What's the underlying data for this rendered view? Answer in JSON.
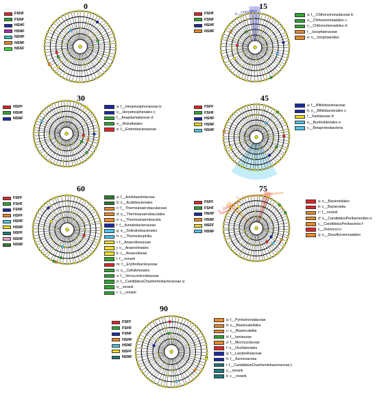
{
  "panels": [
    {
      "title": "0",
      "legend": [
        {
          "label": "FSHF",
          "color": "#e8242a"
        },
        {
          "label": "FSNF",
          "color": "#2fa832"
        },
        {
          "label": "HSHF",
          "color": "#1a2aa8"
        },
        {
          "label": "HSNF",
          "color": "#b22bb5"
        },
        {
          "label": "NSHF",
          "color": "#34c7c3"
        },
        {
          "label": "NSNF",
          "color": "#f08a24"
        },
        {
          "label": "NSSF",
          "color": "#39e33a"
        }
      ],
      "clades": []
    },
    {
      "title": "15",
      "legend": [
        {
          "label": "FSHF",
          "color": "#e8242a"
        },
        {
          "label": "FSNF",
          "color": "#2fa832"
        },
        {
          "label": "HSHF",
          "color": "#1a2aa8"
        },
        {
          "label": "NSNF",
          "color": "#f08a24"
        }
      ],
      "highlight": "p__Chloroflexi",
      "clades": [
        {
          "label": "a: f__Chthonomonadaceae b:",
          "color": "#2fa832"
        },
        {
          "label": "o__Chthonomonadales c:",
          "color": "#2fa832"
        },
        {
          "label": "c__Chthonomonadetes d:",
          "color": "#2fa832"
        },
        {
          "label": "f__Isosphaeraceae",
          "color": "#f08a24"
        },
        {
          "label": "e: o__Isosphaerales",
          "color": "#f08a24"
        }
      ]
    },
    {
      "title": "30",
      "legend": [
        {
          "label": "HSFF",
          "color": "#e8242a"
        },
        {
          "label": "HSHF",
          "color": "#2fa832"
        },
        {
          "label": "NSNF",
          "color": "#1a2aa8"
        }
      ],
      "clades": [
        {
          "label": "a: f__Herpetosiphonaceae b:",
          "color": "#1a2aa8"
        },
        {
          "label": "o__Herpetosiphonales c:",
          "color": "#1a2aa8"
        },
        {
          "label": "f__Anaplasmataceae d:",
          "color": "#2fa832"
        },
        {
          "label": "o__Rickettsiales",
          "color": "#2fa832"
        },
        {
          "label": "e: f__Enterobacteriaceae",
          "color": "#e8242a"
        }
      ]
    },
    {
      "title": "45",
      "legend": [
        {
          "label": "FSFF",
          "color": "#e8242a"
        },
        {
          "label": "FSHF",
          "color": "#2fa832"
        },
        {
          "label": "HSHF",
          "color": "#1a2aa8"
        },
        {
          "label": "HSNF",
          "color": "#f5e21c"
        },
        {
          "label": "NSHF",
          "color": "#4cc7f0"
        }
      ],
      "clades": [
        {
          "label": "a: f__Bifidobacteriaceae",
          "color": "#1a2aa8"
        },
        {
          "label": "b: o__Bifidobacteriales c:",
          "color": "#1a2aa8"
        },
        {
          "label": "f__Kaistiaceae d:",
          "color": "#f5e21c"
        },
        {
          "label": "o__Burkholderiales e:",
          "color": "#4cc7f0"
        },
        {
          "label": "c__Betaproteobacteria",
          "color": "#4cc7f0"
        }
      ]
    },
    {
      "title": "60",
      "legend": [
        {
          "label": "FSFF",
          "color": "#e8242a"
        },
        {
          "label": "FSHF",
          "color": "#2fa832"
        },
        {
          "label": "FSNF",
          "color": "#1a2aa8"
        },
        {
          "label": "HSFF",
          "color": "#f08a24"
        },
        {
          "label": "HSHF",
          "color": "#4cc7f0"
        },
        {
          "label": "HSNF",
          "color": "#f5e21c"
        },
        {
          "label": "NSFF",
          "color": "#1d7a7a"
        },
        {
          "label": "NSHF",
          "color": "#f2a5c7"
        },
        {
          "label": "NSNF",
          "color": "#2e7d32"
        }
      ],
      "clades": [
        {
          "label": "a: f__Acidobacteriaceae",
          "color": "#2e7d32"
        },
        {
          "label": "b: o__Acidobacteriales",
          "color": "#2e7d32"
        },
        {
          "label": "c: f__Thermoanaerobaculaceae",
          "color": "#f08a24"
        },
        {
          "label": "d: o__Thermoanaerobaculales",
          "color": "#f08a24"
        },
        {
          "label": "e: c__Thermoanaerobaculia",
          "color": "#f08a24"
        },
        {
          "label": "f: f__Ilumatobacteraceae",
          "color": "#1a2aa8"
        },
        {
          "label": "g: o__Solirubrobacterales",
          "color": "#4cc7f0"
        },
        {
          "label": "h: c__Thermoleophilia",
          "color": "#4cc7f0"
        },
        {
          "label": "i: f__Anaerolineaceae",
          "color": "#f5e21c"
        },
        {
          "label": "j: o__Anaerolineales",
          "color": "#f5e21c"
        },
        {
          "label": "k: c__Anaerolineae",
          "color": "#f5e21c"
        },
        {
          "label": "l: f__norank",
          "color": "#2fa832"
        },
        {
          "label": "m: f__Erythrobacteraceae",
          "color": "#e8242a"
        },
        {
          "label": "n: o__Cellvibrionales",
          "color": "#2fa832"
        },
        {
          "label": "o: f__Verrucomicrobiaceae",
          "color": "#2fa832"
        },
        {
          "label": "p: f__CandidatusChazhemtobacteraceae q:",
          "color": "#2fa832"
        },
        {
          "label": "o__norank",
          "color": "#2fa832"
        },
        {
          "label": "r: c__norank",
          "color": "#2fa832"
        }
      ]
    },
    {
      "title": "75",
      "legend": [
        {
          "label": "FSFF",
          "color": "#e8242a"
        },
        {
          "label": "FSHF",
          "color": "#2fa832"
        },
        {
          "label": "HSHF",
          "color": "#1a2aa8"
        },
        {
          "label": "HSNF",
          "color": "#f08a24"
        },
        {
          "label": "NSFF",
          "color": "#f5e21c"
        },
        {
          "label": "NSNF",
          "color": "#4cc7f0"
        }
      ],
      "highlights": [
        "p__Deinococcus-Thermus",
        "p__Candidatus_Peregrinibacteria"
      ],
      "clades": [
        {
          "label": "a: o__Bacteroidales",
          "color": "#e8242a"
        },
        {
          "label": "b: c__Bacteroidia",
          "color": "#e8242a"
        },
        {
          "label": "c: f__norank",
          "color": "#f08a24"
        },
        {
          "label": "d: o__CandidatusPeribacterales e:",
          "color": "#f08a24"
        },
        {
          "label": "c__CandidatusPeribacteria f:",
          "color": "#f08a24"
        },
        {
          "label": "c__Deinococci",
          "color": "#e8242a"
        },
        {
          "label": "g: o__Desulfuromonadales",
          "color": "#f08a24"
        }
      ]
    },
    {
      "title": "90",
      "legend": [
        {
          "label": "FSFF",
          "color": "#e8242a"
        },
        {
          "label": "FSHF",
          "color": "#2fa832"
        },
        {
          "label": "FSNF",
          "color": "#1a2aa8"
        },
        {
          "label": "HSHF",
          "color": "#f08a24"
        },
        {
          "label": "HSNF",
          "color": "#4cc7f0"
        },
        {
          "label": "NSFF",
          "color": "#f5e21c"
        },
        {
          "label": "NSNF",
          "color": "#1d7a7a"
        }
      ],
      "clades": [
        {
          "label": "a: f__Pyrinomonadaceae",
          "color": "#f08a24"
        },
        {
          "label": "b: o__Blastocatellales",
          "color": "#f08a24"
        },
        {
          "label": "c: c__Blastocatellia",
          "color": "#f08a24"
        },
        {
          "label": "d: f__Iamiaceae",
          "color": "#2fa832"
        },
        {
          "label": "e: f__Microcyclaceae",
          "color": "#f08a24"
        },
        {
          "label": "f: o__Oscillatoriales",
          "color": "#e8242a"
        },
        {
          "label": "g: f__Lacipirellulaceae",
          "color": "#1a2aa8"
        },
        {
          "label": "h: f__Azonexaceae",
          "color": "#1a2aa8"
        },
        {
          "label": "i: f__CandidatusChazhemtobacteraceae j:",
          "color": "#1d7a7a"
        },
        {
          "label": "o__norank",
          "color": "#1d7a7a"
        },
        {
          "label": "k: c__norank",
          "color": "#1d7a7a"
        }
      ]
    }
  ]
}
